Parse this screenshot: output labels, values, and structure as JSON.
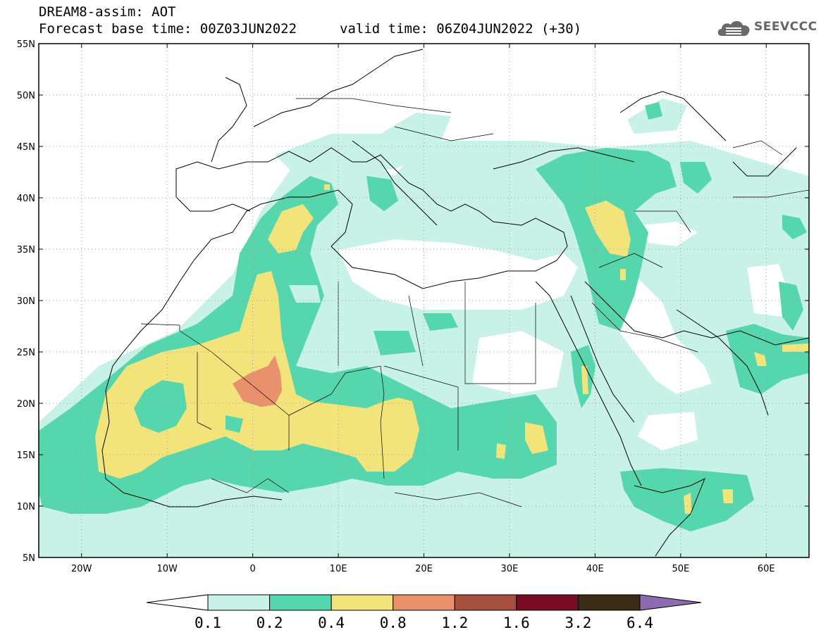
{
  "header": {
    "title": "DREAM8-assim: AOT",
    "base_time": "Forecast base time: 00Z03JUN2022",
    "valid_time": "valid time: 06Z04JUN2022 (+30)"
  },
  "logo": {
    "text": "SEEVCCC",
    "icon": "cloud-icon"
  },
  "map": {
    "region": {
      "lon_min": -25,
      "lon_max": 65,
      "lat_min": 5,
      "lat_max": 55
    },
    "lat_labels": [
      "5N",
      "10N",
      "15N",
      "20N",
      "25N",
      "30N",
      "35N",
      "40N",
      "45N",
      "50N",
      "55N"
    ],
    "lat_values": [
      5,
      10,
      15,
      20,
      25,
      30,
      35,
      40,
      45,
      50,
      55
    ],
    "lon_labels": [
      "20W",
      "10W",
      "0",
      "10E",
      "20E",
      "30E",
      "40E",
      "50E",
      "60E"
    ],
    "lon_values": [
      -20,
      -10,
      0,
      10,
      20,
      30,
      40,
      50,
      60
    ],
    "grid": "dotted"
  },
  "colorbar": {
    "levels": [
      "0.1",
      "0.2",
      "0.4",
      "0.8",
      "1.2",
      "1.6",
      "3.2",
      "6.4"
    ],
    "colors": [
      "#c8f1e8",
      "#56d6ad",
      "#f2e47a",
      "#e8916c",
      "#a5503f",
      "#7a0c26",
      "#3b2a16"
    ],
    "over_color": "#8c6bb0",
    "under_color": "#ffffff"
  }
}
